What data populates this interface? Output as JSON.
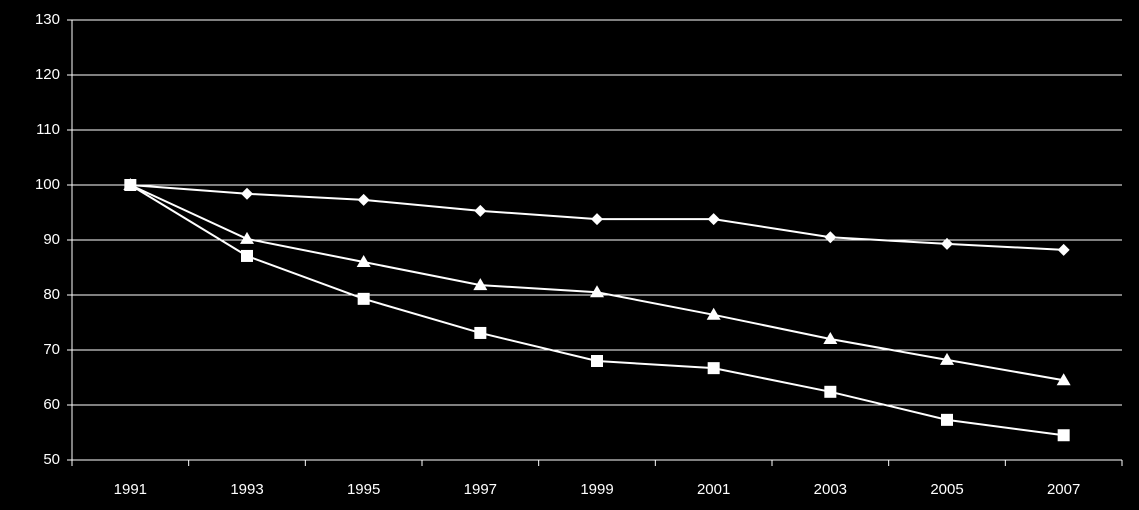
{
  "chart_data": {
    "type": "line",
    "categories": [
      "1991",
      "1993",
      "1995",
      "1997",
      "1999",
      "2001",
      "2003",
      "2005",
      "2007"
    ],
    "series": [
      {
        "color": "#ffffff",
        "marker": "diamond",
        "values": [
          100,
          98.4,
          97.3,
          95.3,
          93.8,
          93.8,
          90.5,
          89.3,
          88.2
        ]
      },
      {
        "color": "#ffffff",
        "marker": "triangle",
        "values": [
          100,
          90.2,
          86.0,
          81.8,
          80.5,
          76.4,
          72.0,
          68.2,
          64.5
        ]
      },
      {
        "color": "#ffffff",
        "marker": "square",
        "values": [
          100,
          87.1,
          79.3,
          73.1,
          68.0,
          66.7,
          62.4,
          57.3,
          54.5
        ]
      }
    ],
    "ylim": [
      50,
      130
    ],
    "yticks": [
      50,
      60,
      70,
      80,
      90,
      100,
      110,
      120,
      130
    ],
    "grid": true
  }
}
